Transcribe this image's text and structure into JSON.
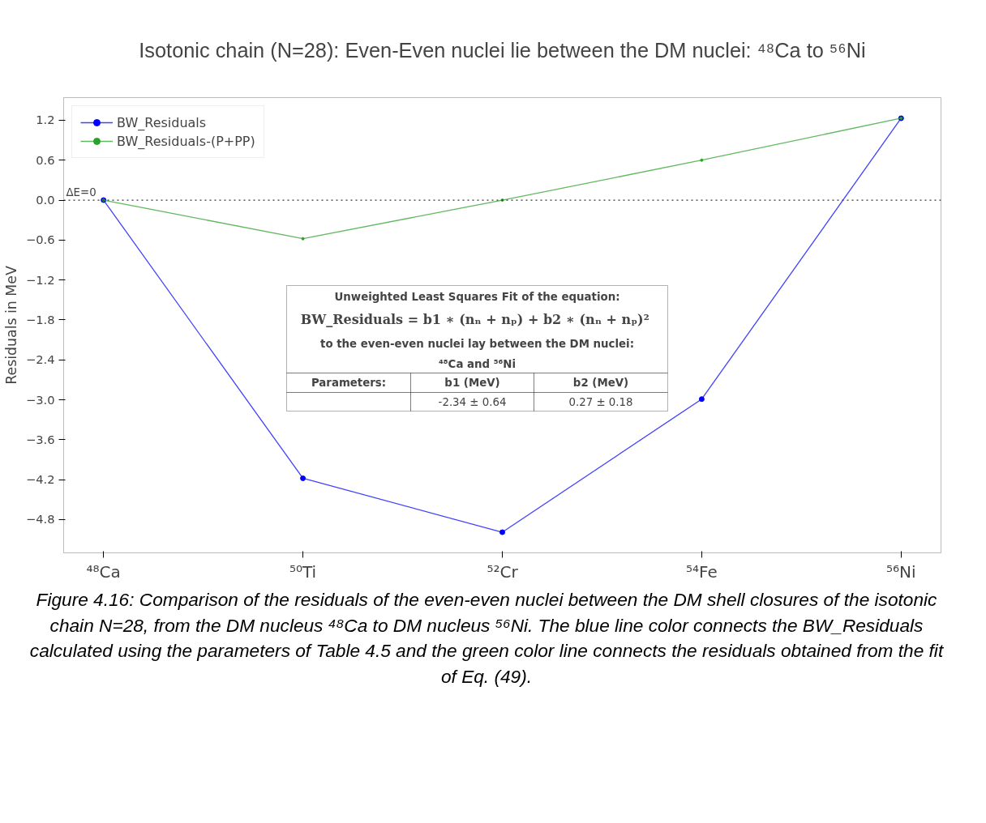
{
  "chart_data": {
    "type": "line",
    "title": "Isotonic chain (N=28): Even-Even nuclei lie between the DM nuclei: ⁴⁸Ca to ⁵⁶Ni",
    "ylabel": "Residuals in MeV",
    "categories": [
      "⁴⁸Ca",
      "⁵⁰Ti",
      "⁵²Cr",
      "⁵⁴Fe",
      "⁵⁶Ni"
    ],
    "series": [
      {
        "name": "BW_Residuals",
        "color": "#0000ff",
        "values": [
          0.0,
          -4.18,
          -4.99,
          -2.99,
          1.23
        ]
      },
      {
        "name": "BW_Residuals-(P+PP)",
        "color": "#2ca02c",
        "values": [
          0.0,
          -0.58,
          0.0,
          0.6,
          1.23
        ]
      }
    ],
    "ylim": [
      -5.3,
      1.54
    ],
    "yticks": [
      {
        "value": 1.2,
        "label": "1.2"
      },
      {
        "value": 0.6,
        "label": "0.6"
      },
      {
        "value": 0,
        "label": "0.0"
      },
      {
        "value": -0.6,
        "label": "−0.6"
      },
      {
        "value": -1.2,
        "label": "−1.2"
      },
      {
        "value": -1.8,
        "label": "−1.8"
      },
      {
        "value": -2.4,
        "label": "−2.4"
      },
      {
        "value": -3.0,
        "label": "−3.0"
      },
      {
        "value": -3.6,
        "label": "−3.6"
      },
      {
        "value": -4.2,
        "label": "−4.2"
      },
      {
        "value": -4.8,
        "label": "−4.8"
      }
    ],
    "ref_lines": [
      {
        "axis": "y",
        "value": 0,
        "label": "ΔE=0",
        "color": "#333333",
        "line_style": "dotted"
      }
    ],
    "marker": "circle",
    "line_style": "solid",
    "legend": "top left",
    "grid": false,
    "annotations": [
      "Unweighted Least Squares Fit of the equation:",
      "BW_Residuals = b1 ∗ (nₙ + nₚ) +  b2 ∗ (nₙ + nₚ)²",
      "to the even-even nuclei lay between the DM nuclei:",
      "⁴⁸Ca and ⁵⁶Ni",
      "Parameters:",
      "b1 (MeV)",
      "b2 (MeV)",
      "-2.34 ± 0.64",
      "0.27 ± 0.18",
      "Figure 4.16: Comparison of the residuals of the even-even nuclei between the DM shell closures of the isotonic chain N=28, from the DM nucleus ⁴⁸Ca to DM nucleus ⁵⁶Ni. The blue line color connects the BW_Residuals calculated using the parameters of Table 4.5 and the green color line connects the residuals obtained from the fit of Eq. (49)."
    ]
  }
}
